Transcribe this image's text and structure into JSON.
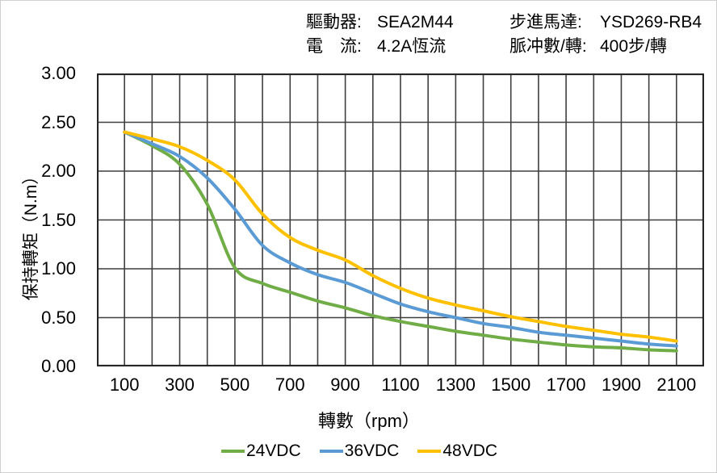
{
  "header": {
    "col1": [
      {
        "label": "驅動器:",
        "value": "SEA2M44"
      },
      {
        "label": "電　流:",
        "value": "4.2A恆流"
      }
    ],
    "col2": [
      {
        "label": "步進馬達:",
        "value": "YSD269-RB4"
      },
      {
        "label": "脈冲數/轉:",
        "value": "400步/轉"
      }
    ]
  },
  "chart_data": {
    "type": "line",
    "title": "",
    "xlabel": "轉數（rpm）",
    "ylabel": "保持轉矩（N.m）",
    "x": [
      100,
      200,
      300,
      400,
      500,
      600,
      700,
      800,
      900,
      1000,
      1100,
      1200,
      1300,
      1400,
      1500,
      1600,
      1700,
      1800,
      1900,
      2000,
      2100
    ],
    "series": [
      {
        "name": "24VDC",
        "color": "#70AD47",
        "values": [
          2.4,
          2.26,
          2.07,
          1.66,
          1.01,
          0.85,
          0.76,
          0.67,
          0.6,
          0.52,
          0.46,
          0.41,
          0.36,
          0.32,
          0.28,
          0.25,
          0.22,
          0.2,
          0.19,
          0.17,
          0.16
        ]
      },
      {
        "name": "36VDC",
        "color": "#5B9BD5",
        "values": [
          2.4,
          2.28,
          2.15,
          1.93,
          1.61,
          1.24,
          1.06,
          0.94,
          0.86,
          0.75,
          0.64,
          0.56,
          0.5,
          0.44,
          0.4,
          0.35,
          0.32,
          0.29,
          0.26,
          0.23,
          0.21
        ]
      },
      {
        "name": "48VDC",
        "color": "#FFC000",
        "values": [
          2.4,
          2.33,
          2.25,
          2.11,
          1.91,
          1.56,
          1.32,
          1.19,
          1.09,
          0.93,
          0.8,
          0.7,
          0.63,
          0.57,
          0.51,
          0.46,
          0.41,
          0.37,
          0.33,
          0.3,
          0.26
        ]
      }
    ],
    "ylim": [
      0.0,
      3.0
    ],
    "xlim_rpm": [
      100,
      2100
    ],
    "ytick_labels": [
      "3.00",
      "2.50",
      "2.00",
      "1.50",
      "1.00",
      "0.50",
      "0.00"
    ],
    "xtick_labels": [
      "100",
      "300",
      "500",
      "700",
      "900",
      "1100",
      "1300",
      "1500",
      "1700",
      "1900",
      "2100"
    ],
    "grid": true,
    "legend_position": "bottom"
  },
  "colors": {
    "grid": "#3f3f3f",
    "plot_border": "#262626",
    "text": "#000000",
    "page_border": "#cfcfcf"
  }
}
